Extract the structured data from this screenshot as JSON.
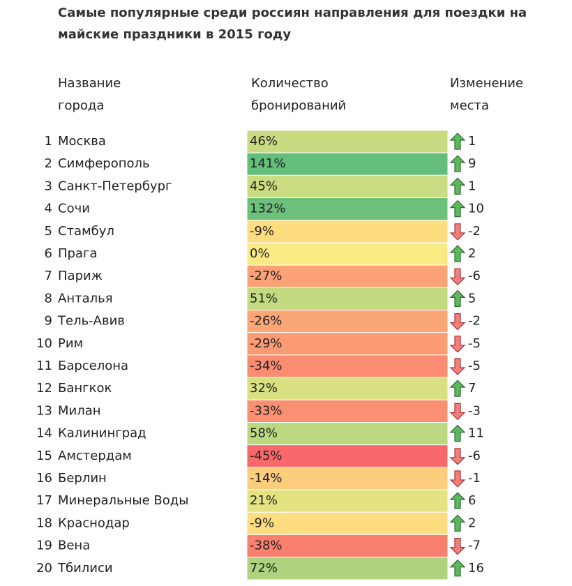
{
  "header": {
    "title_lines": [
      "Самые популярные среди россиян направления для поездки на",
      "майские праздники в 2015 году"
    ]
  },
  "table": {
    "columns": [
      [
        "Название",
        "города"
      ],
      [
        "Количество",
        "бронирований"
      ],
      [
        "Изменение",
        "места"
      ]
    ],
    "color_scale": {
      "min": "#f8696b",
      "mid": "#ffeb84",
      "max": "#63be7b"
    },
    "rows": [
      {
        "rank": 1,
        "city": "Москва",
        "bookings": {
          "value": 46,
          "label": "46%"
        },
        "change": 1
      },
      {
        "rank": 2,
        "city": "Симферополь",
        "bookings": {
          "value": 141,
          "label": "141%"
        },
        "change": 9
      },
      {
        "rank": 3,
        "city": "Санкт-Петербург",
        "bookings": {
          "value": 45,
          "label": "45%"
        },
        "change": 1
      },
      {
        "rank": 4,
        "city": "Сочи",
        "bookings": {
          "value": 132,
          "label": "132%"
        },
        "change": 10
      },
      {
        "rank": 5,
        "city": "Стамбул",
        "bookings": {
          "value": -9,
          "label": "-9%"
        },
        "change": -2
      },
      {
        "rank": 6,
        "city": "Прага",
        "bookings": {
          "value": 0,
          "label": "0%"
        },
        "change": 2
      },
      {
        "rank": 7,
        "city": "Париж",
        "bookings": {
          "value": -27,
          "label": "-27%"
        },
        "change": -6
      },
      {
        "rank": 8,
        "city": "Анталья",
        "bookings": {
          "value": 51,
          "label": "51%"
        },
        "change": 5
      },
      {
        "rank": 9,
        "city": "Тель-Авив",
        "bookings": {
          "value": -26,
          "label": "-26%"
        },
        "change": -2
      },
      {
        "rank": 10,
        "city": "Рим",
        "bookings": {
          "value": -29,
          "label": "-29%"
        },
        "change": -5
      },
      {
        "rank": 11,
        "city": "Барселона",
        "bookings": {
          "value": -34,
          "label": "-34%"
        },
        "change": -5
      },
      {
        "rank": 12,
        "city": "Бангкок",
        "bookings": {
          "value": 32,
          "label": "32%"
        },
        "change": 7
      },
      {
        "rank": 13,
        "city": "Милан",
        "bookings": {
          "value": -33,
          "label": "-33%"
        },
        "change": -3
      },
      {
        "rank": 14,
        "city": "Калининград",
        "bookings": {
          "value": 58,
          "label": "58%"
        },
        "change": 11
      },
      {
        "rank": 15,
        "city": "Амстердам",
        "bookings": {
          "value": -45,
          "label": "-45%"
        },
        "change": -6
      },
      {
        "rank": 16,
        "city": "Берлин",
        "bookings": {
          "value": -14,
          "label": "-14%"
        },
        "change": -1
      },
      {
        "rank": 17,
        "city": "Минеральные Воды",
        "bookings": {
          "value": 21,
          "label": "21%"
        },
        "change": 6
      },
      {
        "rank": 18,
        "city": "Краснодар",
        "bookings": {
          "value": -9,
          "label": "-9%"
        },
        "change": 2
      },
      {
        "rank": 19,
        "city": "Вена",
        "bookings": {
          "value": -38,
          "label": "-38%"
        },
        "change": -7
      },
      {
        "rank": 20,
        "city": "Тбилиси",
        "bookings": {
          "value": 72,
          "label": "72%"
        },
        "change": 16
      }
    ]
  }
}
